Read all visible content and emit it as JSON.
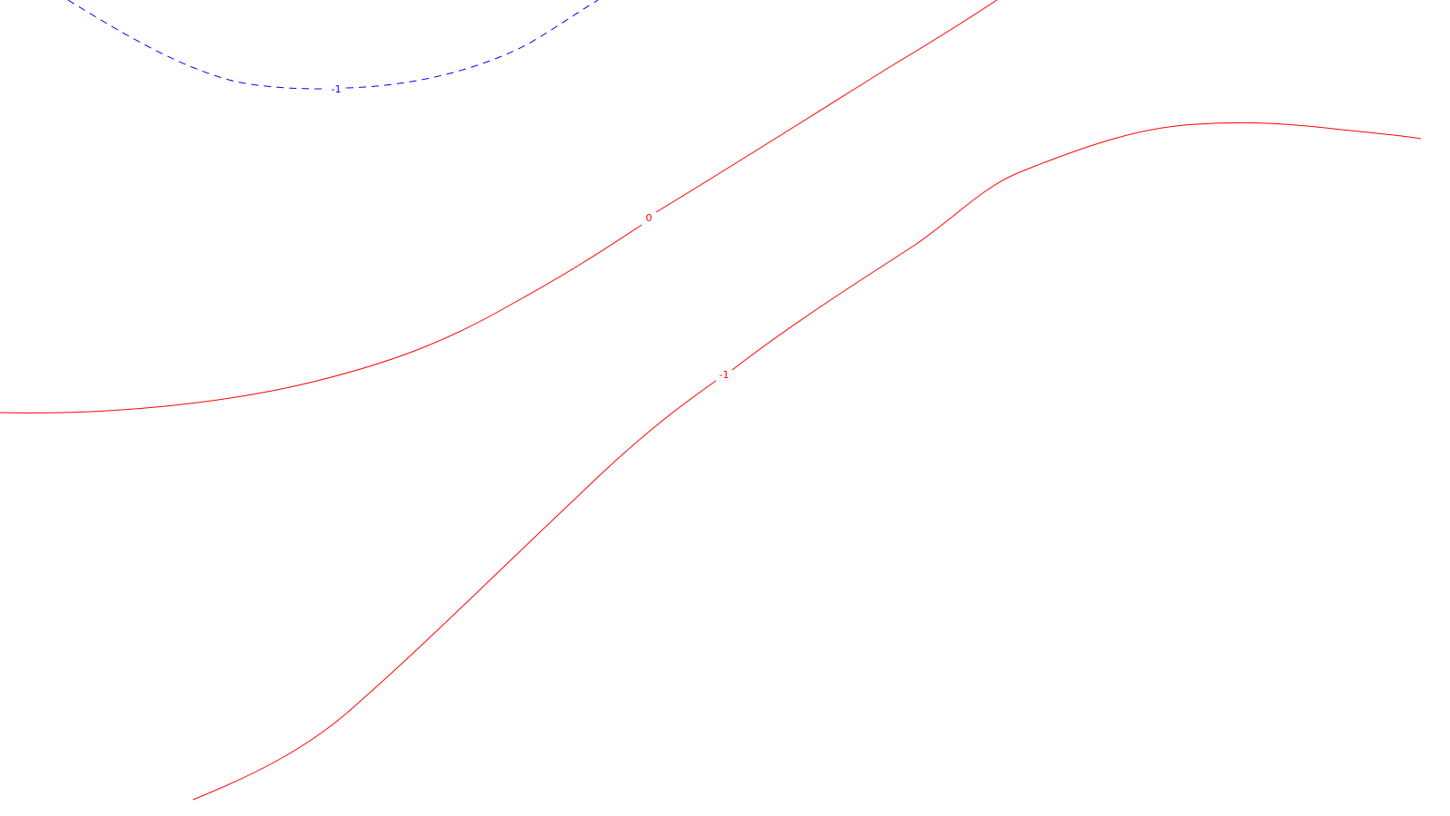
{
  "contours": [
    {
      "id": "blue-dashed",
      "label": "-1",
      "color": "#0000ff",
      "style": "dashed"
    },
    {
      "id": "red-zero",
      "label": "0",
      "color": "#ff0000",
      "style": "solid"
    },
    {
      "id": "red-minus-one",
      "label": "-1",
      "color": "#ff0000",
      "style": "solid"
    }
  ]
}
